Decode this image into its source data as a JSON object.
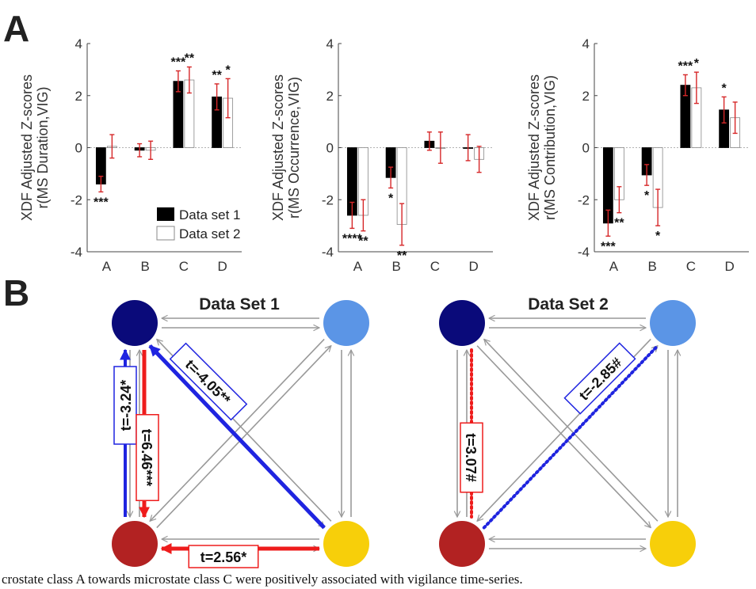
{
  "panel_labels": {
    "a": "A",
    "b": "B"
  },
  "caption": "crostate class A towards microstate class C were positively associated with vigilance time-series.",
  "colors": {
    "set1_bar": "#000000",
    "set2_bar": "#ffffff",
    "error": "#d62728",
    "node_A": "#0a0a7a",
    "node_B": "#5b95e6",
    "node_C": "#b22222",
    "node_D": "#f7cf0a",
    "edge_gray": "#999999",
    "edge_blue": "#1f24e0",
    "edge_red": "#ee1c1c"
  },
  "chart_data": [
    {
      "type": "bar",
      "ylabel_line1": "XDF Adjusted Z-scores",
      "ylabel_line2": "r(MS Duration,VIG)",
      "categories": [
        "A",
        "B",
        "C",
        "D"
      ],
      "ylim": [
        -4,
        4
      ],
      "yticks": [
        "4",
        "2",
        "0",
        "-2",
        "-4"
      ],
      "legend": [
        "Data set 1",
        "Data set 2"
      ],
      "series": [
        {
          "name": "Data set 1",
          "values": [
            -1.4,
            -0.1,
            2.55,
            1.95
          ],
          "err": [
            0.3,
            0.25,
            0.4,
            0.5
          ]
        },
        {
          "name": "Data set 2",
          "values": [
            0.05,
            -0.1,
            2.6,
            1.9
          ],
          "err": [
            0.45,
            0.35,
            0.5,
            0.75
          ]
        }
      ],
      "sig": [
        {
          "cat": 0,
          "series": 0,
          "label": "***",
          "pos": "below"
        },
        {
          "cat": 2,
          "series": 0,
          "label": "***",
          "pos": "above"
        },
        {
          "cat": 2,
          "series": 1,
          "label": "**",
          "pos": "above"
        },
        {
          "cat": 3,
          "series": 0,
          "label": "**",
          "pos": "above"
        },
        {
          "cat": 3,
          "series": 1,
          "label": "*",
          "pos": "above"
        }
      ]
    },
    {
      "type": "bar",
      "ylabel_line1": "XDF Adjusted Z-scores",
      "ylabel_line2": "r(MS Occurrence,VIG)",
      "categories": [
        "A",
        "B",
        "C",
        "D"
      ],
      "ylim": [
        -4,
        4
      ],
      "yticks": [
        "4",
        "2",
        "0",
        "-2",
        "-4"
      ],
      "series": [
        {
          "name": "Data set 1",
          "values": [
            -2.6,
            -1.15,
            0.25,
            0.0
          ],
          "err": [
            0.5,
            0.4,
            0.35,
            0.5
          ]
        },
        {
          "name": "Data set 2",
          "values": [
            -2.6,
            -2.95,
            0.0,
            -0.45
          ],
          "err": [
            0.6,
            0.8,
            0.6,
            0.5
          ]
        }
      ],
      "sig": [
        {
          "cat": 0,
          "series": 0,
          "label": "****",
          "pos": "below"
        },
        {
          "cat": 0,
          "series": 1,
          "label": "**",
          "pos": "below"
        },
        {
          "cat": 1,
          "series": 0,
          "label": "*",
          "pos": "below"
        },
        {
          "cat": 1,
          "series": 1,
          "label": "**",
          "pos": "below"
        }
      ]
    },
    {
      "type": "bar",
      "ylabel_line1": "XDF Adjusted Z-scores",
      "ylabel_line2": "r(MS Contribution,VIG)",
      "categories": [
        "A",
        "B",
        "C",
        "D"
      ],
      "ylim": [
        -4,
        4
      ],
      "yticks": [
        "4",
        "2",
        "0",
        "-2",
        "-4"
      ],
      "series": [
        {
          "name": "Data set 1",
          "values": [
            -2.9,
            -1.05,
            2.4,
            1.45
          ],
          "err": [
            0.5,
            0.4,
            0.4,
            0.5
          ]
        },
        {
          "name": "Data set 2",
          "values": [
            -2.0,
            -2.3,
            2.3,
            1.15
          ],
          "err": [
            0.5,
            0.7,
            0.6,
            0.6
          ]
        }
      ],
      "sig": [
        {
          "cat": 0,
          "series": 0,
          "label": "***",
          "pos": "below"
        },
        {
          "cat": 0,
          "series": 1,
          "label": "**",
          "pos": "below"
        },
        {
          "cat": 1,
          "series": 0,
          "label": "*",
          "pos": "below"
        },
        {
          "cat": 1,
          "series": 1,
          "label": "*",
          "pos": "below"
        },
        {
          "cat": 2,
          "series": 0,
          "label": "***",
          "pos": "above"
        },
        {
          "cat": 2,
          "series": 1,
          "label": "*",
          "pos": "above"
        },
        {
          "cat": 3,
          "series": 0,
          "label": "*",
          "pos": "above"
        }
      ]
    }
  ],
  "networks": [
    {
      "title": "Data Set 1",
      "highlights": [
        {
          "label": "t=-3.24*",
          "color": "blue",
          "style": "solid"
        },
        {
          "label": "t=6.46***",
          "color": "red",
          "style": "solid"
        },
        {
          "label": "t=-4.05**",
          "color": "blue",
          "style": "solid"
        },
        {
          "label": "t=2.56*",
          "color": "red",
          "style": "solid"
        }
      ]
    },
    {
      "title": "Data Set 2",
      "highlights": [
        {
          "label": "t=3.07#",
          "color": "red",
          "style": "dotted"
        },
        {
          "label": "t=-2.85#",
          "color": "blue",
          "style": "dotted"
        }
      ]
    }
  ]
}
